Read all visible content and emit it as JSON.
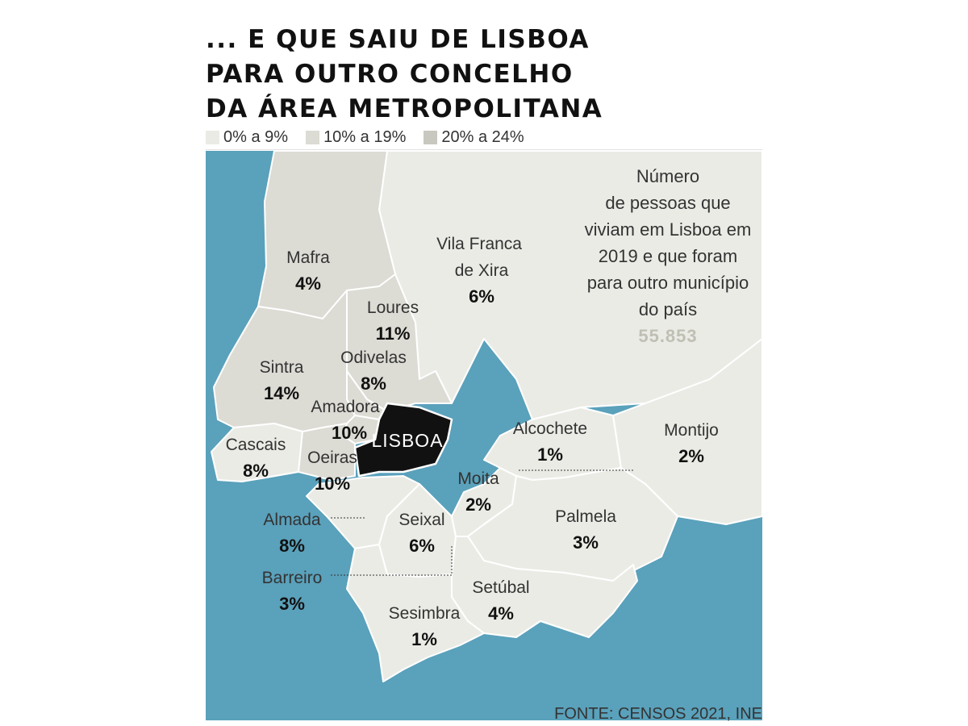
{
  "title_lines": [
    "... E QUE SAIU DE LISBOA",
    "PARA OUTRO CONCELHO",
    "DA ÁREA METROPOLITANA"
  ],
  "legend": [
    {
      "label": "0% a 9%",
      "color": "#ebebe6"
    },
    {
      "label": "10% a 19%",
      "color": "#dcdbd4"
    },
    {
      "label": "20% a 24%",
      "color": "#c9c8c0"
    }
  ],
  "colors": {
    "water": "#5aa1bb",
    "land_low": "#ebebe6",
    "land_mid": "#dcdbd4",
    "lisboa": "#111111",
    "border": "#ffffff",
    "total": "#c0bfb4"
  },
  "lisboa_label": "LISBOA",
  "municipalities": [
    {
      "name": "Mafra",
      "value": "4%"
    },
    {
      "name": "Vila Franca de Xira",
      "value": "6%"
    },
    {
      "name": "Loures",
      "value": "11%"
    },
    {
      "name": "Odivelas",
      "value": "8%"
    },
    {
      "name": "Sintra",
      "value": "14%"
    },
    {
      "name": "Amadora",
      "value": "10%"
    },
    {
      "name": "Cascais",
      "value": "8%"
    },
    {
      "name": "Oeiras",
      "value": "10%"
    },
    {
      "name": "Alcochete",
      "value": "1%"
    },
    {
      "name": "Montijo",
      "value": "2%"
    },
    {
      "name": "Moita",
      "value": "2%"
    },
    {
      "name": "Almada",
      "value": "8%"
    },
    {
      "name": "Seixal",
      "value": "6%"
    },
    {
      "name": "Palmela",
      "value": "3%"
    },
    {
      "name": "Barreiro",
      "value": "3%"
    },
    {
      "name": "Setúbal",
      "value": "4%"
    },
    {
      "name": "Sesimbra",
      "value": "1%"
    }
  ],
  "info": {
    "text_lines": [
      "Número",
      "de pessoas que",
      "viviam em Lisboa em",
      "2019 e que foram",
      "para outro município",
      "do país"
    ],
    "total": "55.853"
  },
  "source": "FONTE: CENSOS 2021, INE"
}
